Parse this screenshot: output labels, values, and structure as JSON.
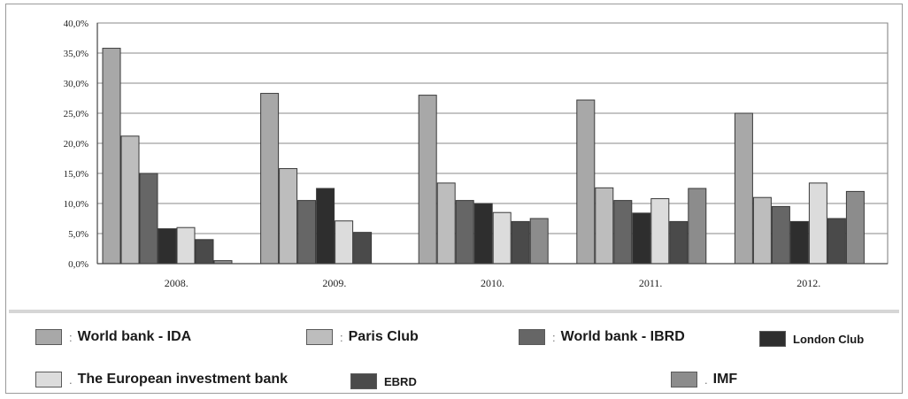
{
  "chart_data": {
    "type": "bar",
    "categories": [
      "2008.",
      "2009.",
      "2010.",
      "2011.",
      "2012."
    ],
    "ylim": [
      0,
      40
    ],
    "yticks": [
      "0,0%",
      "5,0%",
      "10,0%",
      "15,0%",
      "20,0%",
      "25,0%",
      "30,0%",
      "35,0%",
      "40,0%"
    ],
    "grid": true,
    "legend_placement": "bottom",
    "series": [
      {
        "name": "World bank - IDA",
        "color": "#a8a8a8",
        "values": [
          35.8,
          28.3,
          28.0,
          27.2,
          25.0
        ]
      },
      {
        "name": "Paris Club",
        "color": "#bdbdbd",
        "values": [
          21.2,
          15.8,
          13.4,
          12.6,
          11.0
        ]
      },
      {
        "name": "World bank - IBRD",
        "color": "#666666",
        "values": [
          15.0,
          10.5,
          10.5,
          10.5,
          9.5
        ]
      },
      {
        "name": "London Club",
        "color": "#2e2e2e",
        "values": [
          5.8,
          12.5,
          10.0,
          8.4,
          7.0
        ]
      },
      {
        "name": "The European investment bank",
        "color": "#dcdcdc",
        "values": [
          6.0,
          7.1,
          8.5,
          10.8,
          13.4
        ]
      },
      {
        "name": "EBRD",
        "color": "#4a4a4a",
        "values": [
          4.0,
          5.2,
          7.0,
          7.0,
          7.5
        ]
      },
      {
        "name": "IMF",
        "color": "#8c8c8c",
        "values": [
          0.5,
          0,
          7.5,
          12.5,
          12.0
        ]
      }
    ]
  },
  "legend": {
    "items": [
      {
        "label": "World bank - IDA",
        "colon": ":"
      },
      {
        "label": "Paris Club",
        "colon": ":"
      },
      {
        "label": "World bank - IBRD",
        "colon": ":"
      },
      {
        "label": "London Club",
        "colon": ""
      },
      {
        "label": "The European investment bank",
        "colon": "."
      },
      {
        "label": "EBRD",
        "colon": ""
      },
      {
        "label": "IMF",
        "colon": "."
      }
    ]
  }
}
